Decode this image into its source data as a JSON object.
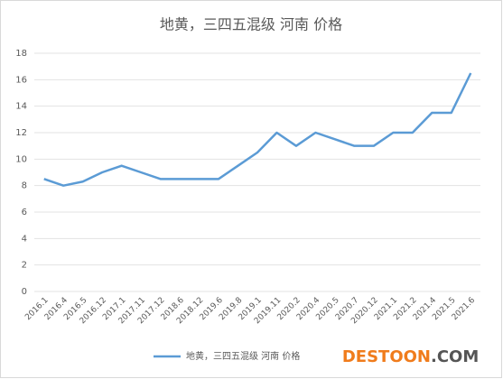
{
  "chart_data": {
    "type": "line",
    "title": "地黄，三四五混级 河南 价格",
    "categories": [
      "2016.1",
      "2016.4",
      "2016.5",
      "2016.12",
      "2017.1",
      "2017.11",
      "2017.12",
      "2018.6",
      "2018.12",
      "2019.6",
      "2019.8",
      "2019.1",
      "2019.11",
      "2020.2",
      "2020.4",
      "2020.5",
      "2020.7",
      "2020.12",
      "2021.1",
      "2021.2",
      "2021.4",
      "2021.5",
      "2021.6"
    ],
    "series": [
      {
        "name": "地黄，三四五混级 河南 价格",
        "color": "#5b9bd5",
        "values": [
          8.5,
          8.0,
          8.3,
          9.0,
          9.5,
          9.0,
          8.5,
          8.5,
          8.5,
          8.5,
          9.5,
          10.5,
          12,
          11,
          12,
          11.5,
          11,
          11,
          12,
          12,
          13.5,
          13.5,
          16.5
        ]
      }
    ],
    "ylim": [
      0,
      18
    ],
    "yticks": [
      0,
      2,
      4,
      6,
      8,
      10,
      12,
      14,
      16,
      18
    ],
    "grid": true,
    "legend": "bottom"
  },
  "watermark": {
    "main": "DESTOON",
    "suffix": ".COM"
  }
}
